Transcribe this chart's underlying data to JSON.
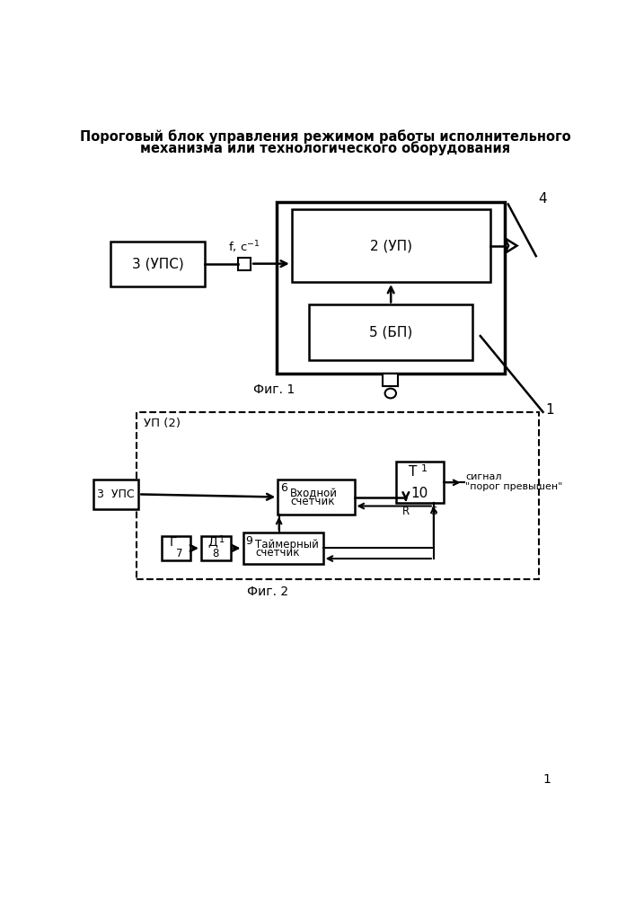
{
  "title_line1": "Пороговый блок управления режимом работы исполнительного",
  "title_line2": "механизма или технологического оборудования",
  "fig1_label": "Фиг. 1",
  "fig2_label": "Фиг. 2",
  "page_number": "1",
  "bg_color": "#ffffff",
  "box_color": "#000000",
  "line_color": "#000000"
}
